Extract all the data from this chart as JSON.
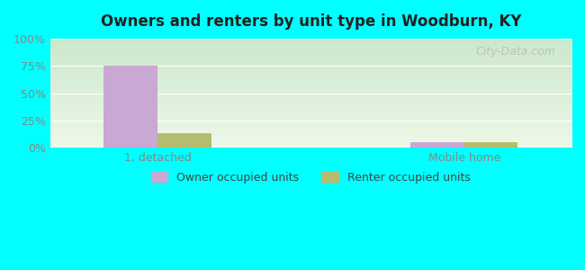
{
  "title": "Owners and renters by unit type in Woodburn, KY",
  "categories": [
    "1, detached",
    "Mobile home"
  ],
  "owner_values": [
    75,
    5
  ],
  "renter_values": [
    13,
    5
  ],
  "owner_color": "#c9a8d4",
  "renter_color": "#b5bc6e",
  "ylim": [
    0,
    100
  ],
  "yticks": [
    0,
    25,
    50,
    75,
    100
  ],
  "ytick_labels": [
    "0%",
    "25%",
    "50%",
    "75%",
    "100%"
  ],
  "legend_owner": "Owner occupied units",
  "legend_renter": "Renter occupied units",
  "bg_top": "#cce8cc",
  "bg_bottom": "#eef8e8",
  "outer_bg": "#00ffff",
  "watermark": "City-Data.com",
  "bar_width": 0.35,
  "group_positions": [
    1.0,
    3.0
  ],
  "xlim": [
    0.3,
    3.7
  ]
}
